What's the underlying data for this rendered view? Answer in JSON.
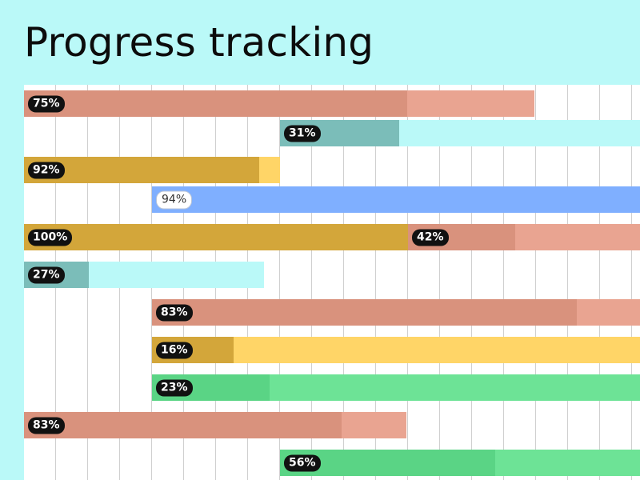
{
  "title": "Progress tracking",
  "colors": {
    "page_bg": "#baf9f8",
    "grid_bg": "#ffffff",
    "grid_line": "#cfcfcf",
    "salmon": [
      "#e9a491",
      "#d9927d"
    ],
    "teal": [
      "#baf9f8",
      "#7bbdb9"
    ],
    "gold": [
      "#ffd567",
      "#d3a63a"
    ],
    "blue": [
      "#1a5ccc",
      "#7fafff"
    ],
    "green": [
      "#6de396",
      "#5ad485"
    ]
  },
  "tasks": [
    {
      "label": "75%",
      "progress": 75,
      "color": "salmon"
    },
    {
      "label": "31%",
      "progress": 31,
      "color": "teal"
    },
    {
      "label": "92%",
      "progress": 92,
      "color": "gold"
    },
    {
      "label": "94%",
      "progress": 94,
      "color": "blue",
      "pill_style": "light"
    },
    {
      "label": "100%",
      "progress": 100,
      "color": "gold"
    },
    {
      "label": "42%",
      "progress": 42,
      "color": "salmon"
    },
    {
      "label": "27%",
      "progress": 27,
      "color": "teal"
    },
    {
      "label": "83%",
      "progress": 83,
      "color": "salmon"
    },
    {
      "label": "16%",
      "progress": 16,
      "color": "gold"
    },
    {
      "label": "23%",
      "progress": 23,
      "color": "green"
    },
    {
      "label": "83%",
      "progress": 83,
      "color": "salmon"
    },
    {
      "label": "56%",
      "progress": 56,
      "color": "green"
    }
  ]
}
